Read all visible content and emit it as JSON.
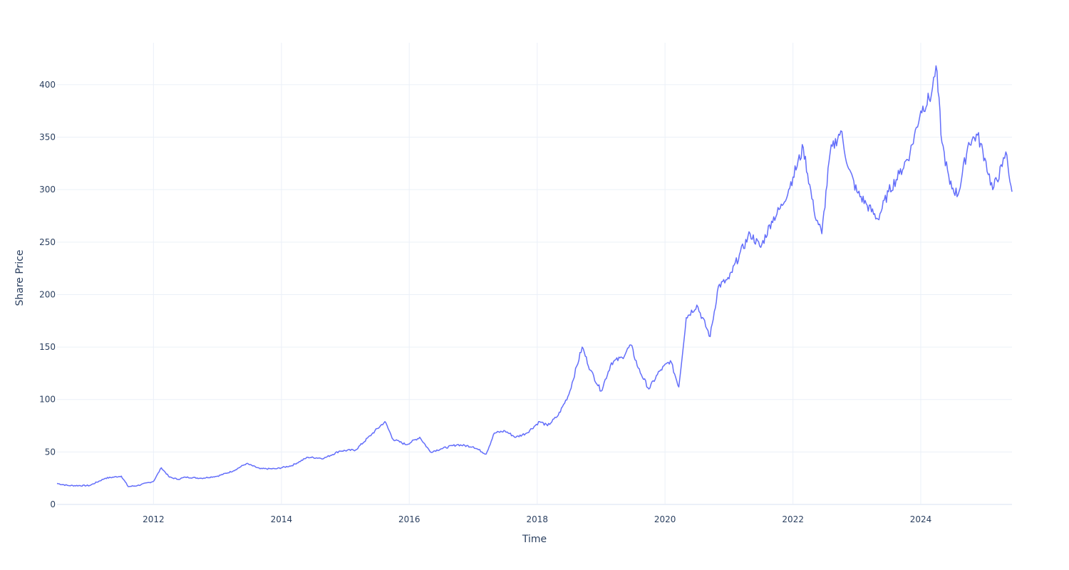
{
  "chart_data": {
    "type": "line",
    "title": "",
    "xlabel": "Time",
    "ylabel": "Share Price",
    "xlim": [
      "2010-06-29",
      "2025-06-05"
    ],
    "ylim": [
      0,
      440
    ],
    "x_ticks": [
      "2012",
      "2014",
      "2016",
      "2018",
      "2020",
      "2022",
      "2024"
    ],
    "y_ticks": [
      "0",
      "50",
      "100",
      "150",
      "200",
      "250",
      "300",
      "350",
      "400"
    ],
    "grid": true,
    "legend": "none",
    "line_color": "#636efa",
    "series": [
      {
        "x": [
          "2010-06-29",
          "2010-09-01",
          "2011-01-01",
          "2011-04-01",
          "2011-07-01",
          "2011-08-10",
          "2011-10-01",
          "2012-01-01",
          "2012-02-15",
          "2012-04-01",
          "2012-05-20",
          "2012-07-01",
          "2012-10-01",
          "2013-01-01",
          "2013-04-01",
          "2013-06-15",
          "2013-09-01",
          "2013-12-01",
          "2014-03-01",
          "2014-06-01",
          "2014-09-01",
          "2014-12-01",
          "2015-03-01",
          "2015-06-01",
          "2015-08-15",
          "2015-10-01",
          "2015-12-15",
          "2016-03-01",
          "2016-05-01",
          "2016-07-01",
          "2016-10-01",
          "2017-01-01",
          "2017-03-15",
          "2017-05-01",
          "2017-07-01",
          "2017-09-01",
          "2017-11-01",
          "2018-01-15",
          "2018-03-01",
          "2018-05-01",
          "2018-07-01",
          "2018-09-15",
          "2018-11-01",
          "2019-01-01",
          "2019-03-01",
          "2019-05-01",
          "2019-06-20",
          "2019-08-01",
          "2019-10-01",
          "2019-12-01",
          "2020-02-01",
          "2020-03-20",
          "2020-05-01",
          "2020-07-01",
          "2020-09-15",
          "2020-11-01",
          "2021-01-01",
          "2021-03-01",
          "2021-05-01",
          "2021-07-01",
          "2021-09-01",
          "2021-11-01",
          "2022-01-01",
          "2022-03-01",
          "2022-05-01",
          "2022-06-15",
          "2022-08-01",
          "2022-10-01",
          "2022-11-15",
          "2023-01-01",
          "2023-03-01",
          "2023-05-01",
          "2023-07-01",
          "2023-09-01",
          "2023-11-01",
          "2024-01-01",
          "2024-03-01",
          "2024-03-28",
          "2024-05-01",
          "2024-06-15",
          "2024-08-01",
          "2024-10-01",
          "2024-11-20",
          "2025-01-01",
          "2025-02-15",
          "2025-04-10",
          "2025-05-01",
          "2025-06-05"
        ],
        "y": [
          20,
          18,
          18,
          25,
          27,
          17,
          18,
          22,
          35,
          26,
          24,
          26,
          25,
          27,
          32,
          39,
          34,
          34,
          37,
          45,
          44,
          51,
          52,
          67,
          79,
          62,
          57,
          64,
          50,
          53,
          57,
          55,
          48,
          68,
          70,
          64,
          68,
          79,
          75,
          85,
          105,
          150,
          128,
          108,
          135,
          140,
          152,
          130,
          110,
          127,
          137,
          112,
          178,
          190,
          160,
          208,
          215,
          238,
          258,
          245,
          270,
          285,
          312,
          340,
          280,
          258,
          335,
          356,
          320,
          298,
          285,
          272,
          298,
          315,
          335,
          375,
          390,
          418,
          345,
          305,
          295,
          345,
          352,
          330,
          300,
          322,
          336,
          298
        ]
      }
    ]
  }
}
